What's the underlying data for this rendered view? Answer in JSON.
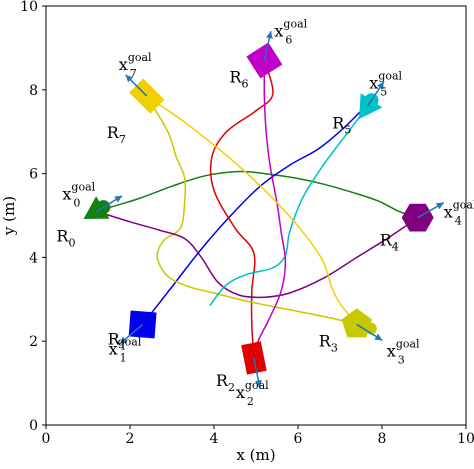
{
  "chart_data": {
    "type": "line",
    "title": "",
    "xlabel": "x (m)",
    "ylabel": "y (m)",
    "xlim": [
      0,
      10
    ],
    "ylim": [
      0,
      10
    ],
    "xticks": [
      "0",
      "2",
      "4",
      "6",
      "8",
      "10"
    ],
    "yticks": [
      "0",
      "2",
      "4",
      "6",
      "8",
      "10"
    ],
    "grid": false,
    "robots": [
      {
        "name": "R",
        "sub": "0",
        "color": "#128012",
        "shape": "triangle",
        "pos": [
          1.2,
          5.1
        ],
        "goal_label": "x",
        "goal_sup": "goal",
        "goal_sub": "0",
        "goal_dir": [
          0.5,
          0.3
        ]
      },
      {
        "name": "R",
        "sub": "1",
        "color": "#0000ee",
        "shape": "square",
        "pos": [
          2.3,
          2.4
        ],
        "goal_label": "x",
        "goal_sup": "goal",
        "goal_sub": "1",
        "goal_dir": [
          -0.35,
          -0.3
        ]
      },
      {
        "name": "R",
        "sub": "2",
        "color": "#e00000",
        "shape": "rect",
        "pos": [
          4.95,
          1.6
        ],
        "goal_label": "x",
        "goal_sup": "goal",
        "goal_sub": "2",
        "goal_dir": [
          0.1,
          -0.5
        ]
      },
      {
        "name": "R",
        "sub": "3",
        "color": "#c8c800",
        "shape": "pentagon",
        "pos": [
          7.4,
          2.4
        ],
        "goal_label": "x",
        "goal_sup": "goal",
        "goal_sub": "3",
        "goal_dir": [
          0.4,
          -0.25
        ]
      },
      {
        "name": "R",
        "sub": "4",
        "color": "#800080",
        "shape": "hexagon",
        "pos": [
          8.85,
          4.95
        ],
        "goal_label": "x",
        "goal_sup": "goal",
        "goal_sub": "4",
        "goal_dir": [
          0.35,
          0.2
        ]
      },
      {
        "name": "R",
        "sub": "5",
        "color": "#00c0c8",
        "shape": "triangle",
        "pos": [
          7.65,
          7.6
        ],
        "goal_label": "x",
        "goal_sup": "goal",
        "goal_sub": "5",
        "goal_dir": [
          0.3,
          0.45
        ]
      },
      {
        "name": "R",
        "sub": "6",
        "color": "#c000c8",
        "shape": "square",
        "pos": [
          5.2,
          8.7
        ],
        "goal_label": "x",
        "goal_sup": "goal",
        "goal_sub": "6",
        "goal_dir": [
          0.1,
          0.45
        ]
      },
      {
        "name": "R",
        "sub": "7",
        "color": "#f0d000",
        "shape": "rect",
        "pos": [
          2.4,
          7.85
        ],
        "goal_label": "x",
        "goal_sup": "goal",
        "goal_sub": "7",
        "goal_dir": [
          -0.3,
          0.3
        ]
      }
    ],
    "series": [
      {
        "color": "#128012",
        "x": [
          1.2,
          2.2,
          3.0,
          3.8,
          4.6,
          5.2,
          5.9,
          6.6,
          7.3,
          7.9,
          8.4,
          8.8
        ],
        "y": [
          5.1,
          5.4,
          5.7,
          5.95,
          6.05,
          6.0,
          5.9,
          5.75,
          5.55,
          5.35,
          5.1,
          4.95
        ]
      },
      {
        "color": "#0000ee",
        "x": [
          2.3,
          3.0,
          3.7,
          4.4,
          5.1,
          5.8,
          6.5,
          7.1,
          7.6
        ],
        "y": [
          2.4,
          3.3,
          4.2,
          5.0,
          5.7,
          6.2,
          6.6,
          7.1,
          7.6
        ]
      },
      {
        "color": "#e00000",
        "x": [
          4.95,
          4.9,
          4.9,
          4.95,
          4.5,
          4.0,
          3.95,
          4.3,
          5.0,
          5.4,
          5.2
        ],
        "y": [
          1.6,
          2.4,
          3.2,
          4.1,
          4.7,
          5.6,
          6.4,
          7.0,
          7.5,
          7.9,
          8.7
        ]
      },
      {
        "color": "#c8c800",
        "x": [
          7.4,
          6.8,
          5.8,
          4.8,
          4.0,
          3.4,
          2.9,
          2.65,
          2.8,
          3.2,
          3.3,
          3.3,
          3.1,
          2.9,
          2.4
        ],
        "y": [
          2.4,
          2.55,
          2.75,
          2.95,
          3.15,
          3.3,
          3.55,
          4.0,
          4.4,
          4.7,
          5.3,
          5.9,
          6.4,
          7.0,
          7.85
        ]
      },
      {
        "color": "#800080",
        "x": [
          8.85,
          8.2,
          7.4,
          6.6,
          5.8,
          5.2,
          4.6,
          4.1,
          3.7,
          3.3,
          2.7,
          2.0,
          1.2
        ],
        "y": [
          4.95,
          4.5,
          4.0,
          3.5,
          3.15,
          3.05,
          3.1,
          3.4,
          4.0,
          4.45,
          4.65,
          4.85,
          5.1
        ]
      },
      {
        "color": "#00c0c8",
        "x": [
          7.65,
          7.2,
          6.6,
          6.1,
          5.8,
          5.7,
          5.4,
          4.8,
          4.3,
          3.9
        ],
        "y": [
          7.6,
          7.0,
          6.2,
          5.4,
          4.6,
          4.05,
          3.75,
          3.6,
          3.35,
          2.85
        ]
      },
      {
        "color": "#c000c8",
        "x": [
          5.2,
          5.2,
          5.25,
          5.35,
          5.5,
          5.6,
          5.7,
          5.6,
          5.3,
          5.05,
          5.0
        ],
        "y": [
          8.7,
          7.8,
          6.9,
          6.1,
          5.3,
          4.6,
          3.9,
          3.2,
          2.5,
          2.0,
          1.6
        ]
      },
      {
        "color": "#f0d000",
        "x": [
          2.4,
          3.2,
          4.1,
          4.9,
          5.6,
          6.2,
          6.6,
          6.8,
          7.0,
          7.4
        ],
        "y": [
          7.85,
          7.3,
          6.6,
          5.9,
          5.2,
          4.5,
          3.9,
          3.3,
          2.9,
          2.4
        ]
      }
    ]
  }
}
